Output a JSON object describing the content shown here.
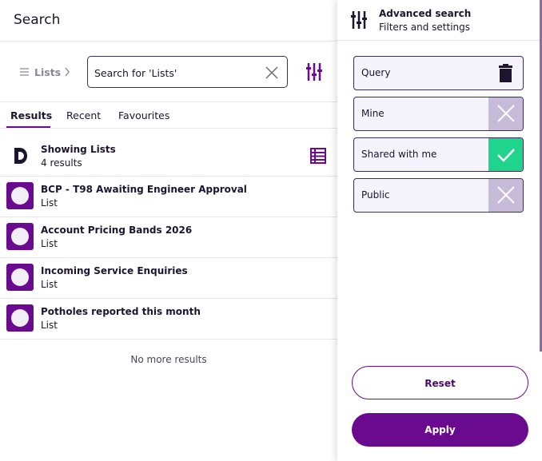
{
  "header": {
    "title": "Search"
  },
  "breadcrumb": "Lists",
  "search": {
    "text": "Search for 'Lists'"
  },
  "tabs": [
    "Results",
    "Recent",
    "Favourites"
  ],
  "summary": {
    "title": "Showing Lists",
    "count": "4 results"
  },
  "results": [
    {
      "title": "BCP - T98 Awaiting Engineer Approval",
      "type": "List"
    },
    {
      "title": "Account Pricing Bands 2026",
      "type": "List"
    },
    {
      "title": "Incoming Service Enquiries",
      "type": "List"
    },
    {
      "title": "Potholes reported this month",
      "type": "List"
    }
  ],
  "footer": "No more results",
  "panel": {
    "title": "Advanced search",
    "subtitle": "Filters and settings",
    "filters": [
      "Query",
      "Mine",
      "Shared with me",
      "Public"
    ],
    "reset": "Reset",
    "apply": "Apply"
  }
}
